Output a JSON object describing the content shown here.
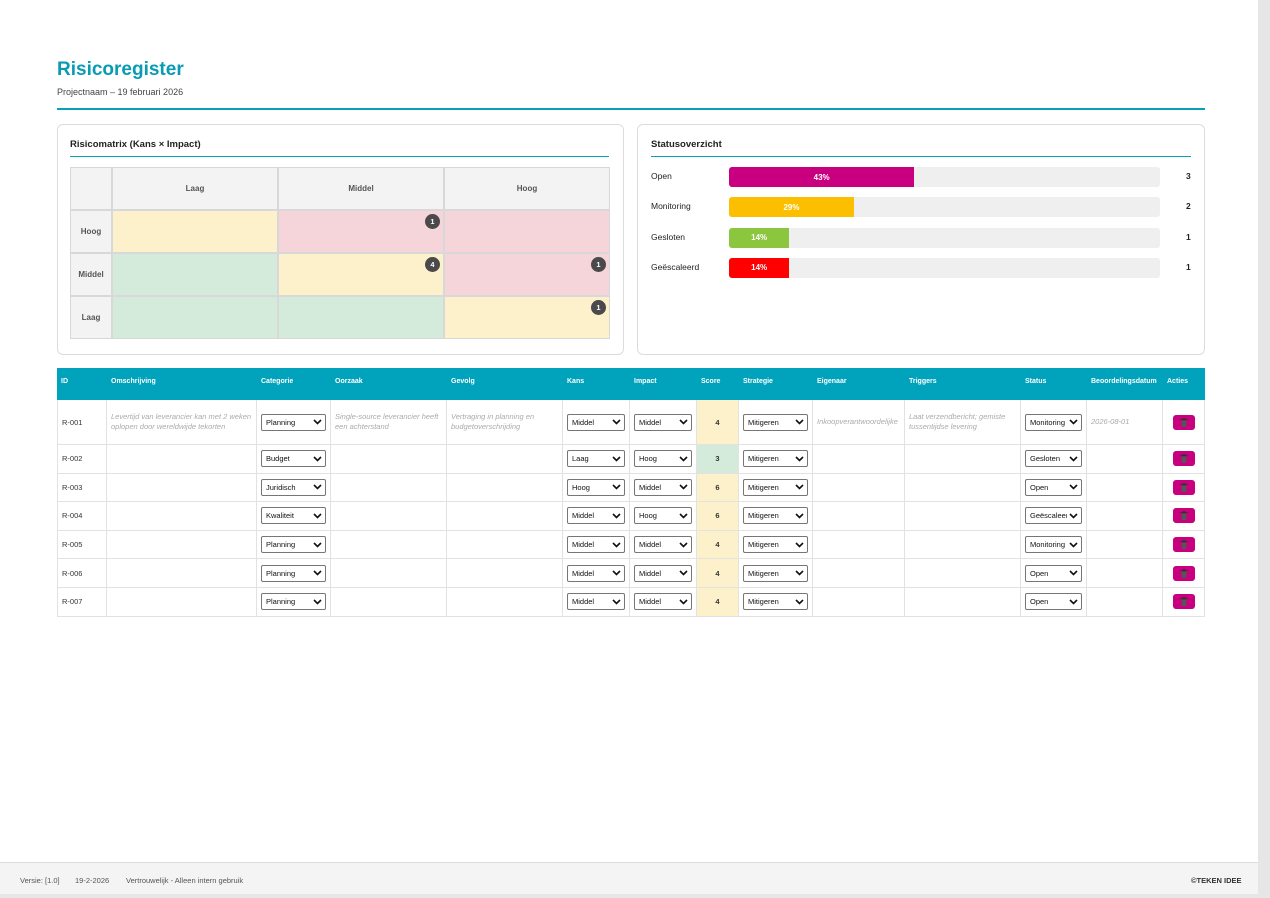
{
  "header": {
    "title": "Risicoregister",
    "subtitle": "Projectnaam – 19 februari 2026"
  },
  "matrix": {
    "title": "Risicomatrix (Kans × Impact)",
    "columns": [
      "Laag",
      "Middel",
      "Hoog"
    ],
    "rows": [
      {
        "label": "Hoog",
        "counts": [
          null,
          1,
          null
        ]
      },
      {
        "label": "Middel",
        "counts": [
          null,
          4,
          1
        ]
      },
      {
        "label": "Laag",
        "counts": [
          null,
          null,
          1
        ]
      }
    ]
  },
  "status": {
    "title": "Statusoverzicht",
    "items": [
      {
        "label": "Open",
        "value": 43,
        "value_label": "43%",
        "count": 3,
        "color": "#c8007f"
      },
      {
        "label": "Monitoring",
        "value": 29,
        "value_label": "29%",
        "count": 2,
        "color": "#fbbf00"
      },
      {
        "label": "Gesloten",
        "value": 14,
        "value_label": "14%",
        "count": 1,
        "color": "#8cc63f"
      },
      {
        "label": "Geëscaleerd",
        "value": 14,
        "value_label": "14%",
        "count": 1,
        "color": "#ff0000"
      }
    ]
  },
  "table": {
    "headers": [
      "ID",
      "Omschrijving",
      "Categorie",
      "Oorzaak",
      "Gevolg",
      "Kans",
      "Impact",
      "Score",
      "Strategie",
      "Eigenaar",
      "Triggers",
      "Status",
      "Beoordelingsdatum",
      "Acties"
    ],
    "rows": [
      [
        "R-001",
        "Levertijd van leverancier kan met 2 weken oplopen door wereldwijde tekorten",
        "Planning",
        "Single-source leverancier heeft een achterstand",
        "Vertraging in planning en budgetoverschrijding",
        "Middel",
        "Middel",
        4,
        "Mitigeren",
        "Inkoopverantwoordelijke",
        "Laat verzendbericht; gemiste tussentijdse levering",
        "Monitoring",
        "2026-08-01"
      ],
      [
        "R-002",
        null,
        "Budget",
        null,
        null,
        "Laag",
        "Hoog",
        3,
        "Mitigeren",
        null,
        null,
        "Gesloten",
        null
      ],
      [
        "R-003",
        null,
        "Juridisch",
        null,
        null,
        "Hoog",
        "Middel",
        6,
        "Mitigeren",
        null,
        null,
        "Open",
        null
      ],
      [
        "R-004",
        null,
        "Kwaliteit",
        null,
        null,
        "Middel",
        "Hoog",
        6,
        "Mitigeren",
        null,
        null,
        "Geëscaleerd",
        null
      ],
      [
        "R-005",
        null,
        "Planning",
        null,
        null,
        "Middel",
        "Middel",
        4,
        "Mitigeren",
        null,
        null,
        "Monitoring",
        null
      ],
      [
        "R-006",
        null,
        "Planning",
        null,
        null,
        "Middel",
        "Middel",
        4,
        "Mitigeren",
        null,
        null,
        "Open",
        null
      ],
      [
        "R-007",
        null,
        "Planning",
        null,
        null,
        "Middel",
        "Middel",
        4,
        "Mitigeren",
        null,
        null,
        "Open",
        null
      ]
    ]
  },
  "footer": {
    "version": "Versie: [1.0]",
    "date": "19-2-2026",
    "confidentiality": "Vertrouwelijk - Alleen intern gebruik",
    "brand": "©TEKEN IDEE"
  }
}
